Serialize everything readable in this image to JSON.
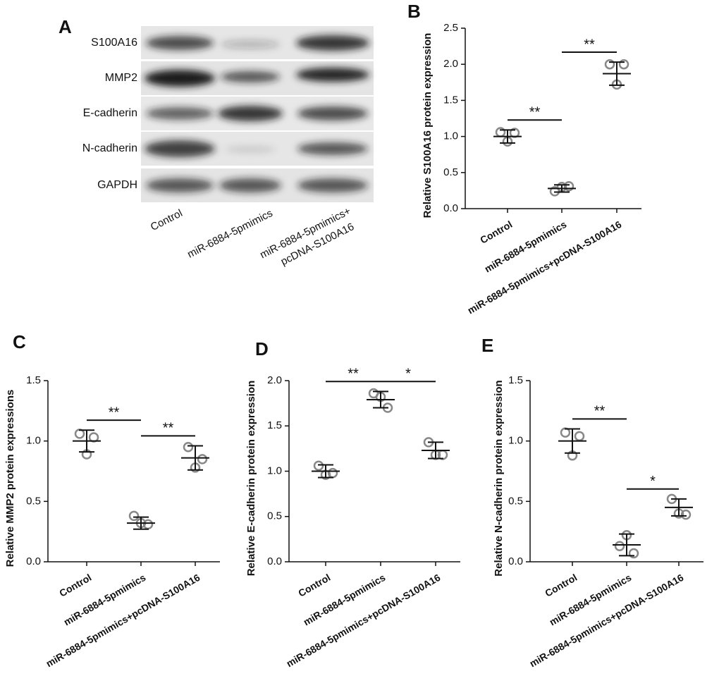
{
  "blot": {
    "panel": "A",
    "rows": [
      "S100A16",
      "MMP2",
      "E-cadherin",
      "N-cadherin",
      "GAPDH"
    ],
    "lanes": [
      [
        "Control"
      ],
      [
        "miR-6884-5pmimics"
      ],
      [
        "miR-6884-5pmimics+",
        "pcDNA-S100A16"
      ]
    ]
  },
  "chart_data": [
    {
      "type": "dot",
      "panel": "B",
      "ylabel": "Relative S100A16 protein expression",
      "categories": [
        "Control",
        "miR-6884-5pmimics",
        "miR-6884-5pmimics+pcDNA-S100A16"
      ],
      "points": [
        [
          1.06,
          1.05,
          0.93
        ],
        [
          0.24,
          0.31,
          0.3
        ],
        [
          2.0,
          2.0,
          1.72
        ]
      ],
      "means": [
        1.0,
        0.28,
        1.87
      ],
      "sd": [
        0.09,
        0.05,
        0.16
      ],
      "ylim": [
        0,
        2.5
      ],
      "yticks": [
        {
          "value": 0,
          "label": "0.0"
        },
        0.5,
        {
          "value": 1,
          "label": "1.0"
        },
        1.5,
        {
          "value": 2,
          "label": "2.0"
        },
        2.5
      ],
      "significance": [
        {
          "label": "**",
          "groups": [
            0,
            1
          ]
        },
        {
          "label": "**",
          "groups": [
            1,
            2
          ]
        }
      ],
      "color": "#888888"
    },
    {
      "type": "dot",
      "panel": "C",
      "ylabel": "Relative MMP2 protein expressions",
      "categories": [
        "Control",
        "miR-6884-5pmimics",
        "miR-6884-5pmimics+pcDNA-S100A16"
      ],
      "points": [
        [
          1.06,
          1.03,
          0.89
        ],
        [
          0.38,
          0.31,
          0.32
        ],
        [
          0.95,
          0.85,
          0.78
        ]
      ],
      "means": [
        1.0,
        0.32,
        0.86
      ],
      "sd": [
        0.09,
        0.05,
        0.1
      ],
      "ylim": [
        0,
        1.5
      ],
      "yticks": [
        {
          "value": 0,
          "label": "0.0"
        },
        0.5,
        {
          "value": 1,
          "label": "1.0"
        },
        1.5
      ],
      "significance": [
        {
          "label": "**",
          "groups": [
            0,
            1
          ]
        },
        {
          "label": "**",
          "groups": [
            1,
            2
          ]
        }
      ],
      "color": "#888888"
    },
    {
      "type": "dot",
      "panel": "D",
      "ylabel": "Relative E-cadherin protein expression",
      "categories": [
        "Control",
        "miR-6884-5pmimics",
        "miR-6884-5pmimics+pcDNA-S100A16"
      ],
      "points": [
        [
          1.06,
          0.98,
          0.96
        ],
        [
          1.86,
          1.7,
          1.82
        ],
        [
          1.32,
          1.18,
          1.18
        ]
      ],
      "means": [
        1.0,
        1.79,
        1.23
      ],
      "sd": [
        0.07,
        0.09,
        0.09
      ],
      "ylim": [
        0,
        2
      ],
      "yticks": [
        {
          "value": 0,
          "label": "0.0"
        },
        0.5,
        {
          "value": 1,
          "label": "1.0"
        },
        1.5,
        {
          "value": 2,
          "label": "2.0"
        }
      ],
      "significance": [
        {
          "label": "**",
          "groups": [
            0,
            1
          ]
        },
        {
          "label": "*",
          "groups": [
            1,
            2
          ]
        }
      ],
      "color": "#888888"
    },
    {
      "type": "dot",
      "panel": "E",
      "ylabel": "Relative N-cadherin protein expression",
      "categories": [
        "Control",
        "miR-6884-5pmimics",
        "miR-6884-5pmimics+pcDNA-S100A16"
      ],
      "points": [
        [
          1.07,
          1.04,
          0.88
        ],
        [
          0.13,
          0.07,
          0.22
        ],
        [
          0.52,
          0.39,
          0.4
        ]
      ],
      "means": [
        1.0,
        0.14,
        0.45
      ],
      "sd": [
        0.1,
        0.09,
        0.07
      ],
      "ylim": [
        0,
        1.5
      ],
      "yticks": [
        {
          "value": 0,
          "label": "0.0"
        },
        0.5,
        {
          "value": 1,
          "label": "1.0"
        },
        1.5
      ],
      "significance": [
        {
          "label": "**",
          "groups": [
            0,
            1
          ]
        },
        {
          "label": "*",
          "groups": [
            1,
            2
          ]
        }
      ],
      "color": "#888888"
    }
  ]
}
